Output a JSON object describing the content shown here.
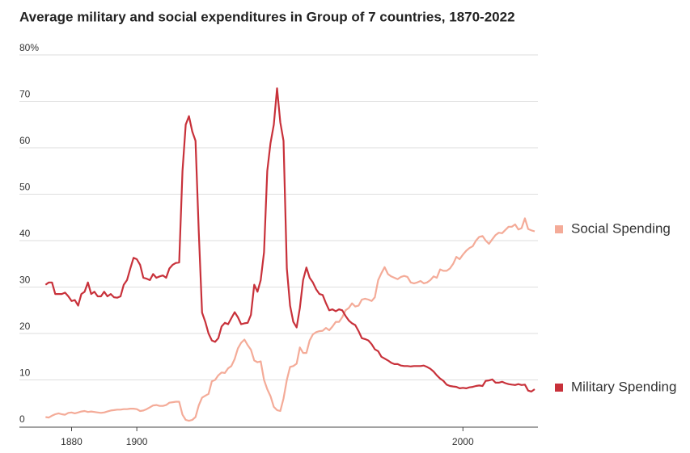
{
  "chart_data": {
    "type": "line",
    "title": "Average military and social expenditures in Group of 7 countries, 1870-2022",
    "x": [
      1872,
      1873,
      1874,
      1875,
      1876,
      1877,
      1878,
      1879,
      1880,
      1881,
      1882,
      1883,
      1884,
      1885,
      1886,
      1887,
      1888,
      1889,
      1890,
      1891,
      1892,
      1893,
      1894,
      1895,
      1896,
      1897,
      1898,
      1899,
      1900,
      1901,
      1902,
      1903,
      1904,
      1905,
      1906,
      1907,
      1908,
      1909,
      1910,
      1911,
      1912,
      1913,
      1914,
      1915,
      1916,
      1917,
      1918,
      1919,
      1920,
      1921,
      1922,
      1923,
      1924,
      1925,
      1926,
      1927,
      1928,
      1929,
      1930,
      1931,
      1932,
      1933,
      1934,
      1935,
      1936,
      1937,
      1938,
      1939,
      1940,
      1941,
      1942,
      1943,
      1944,
      1945,
      1946,
      1947,
      1948,
      1949,
      1950,
      1951,
      1952,
      1953,
      1954,
      1955,
      1956,
      1957,
      1958,
      1959,
      1960,
      1961,
      1962,
      1963,
      1964,
      1965,
      1966,
      1967,
      1968,
      1969,
      1970,
      1971,
      1972,
      1973,
      1974,
      1975,
      1976,
      1977,
      1978,
      1979,
      1980,
      1981,
      1982,
      1983,
      1984,
      1985,
      1986,
      1987,
      1988,
      1989,
      1990,
      1991,
      1992,
      1993,
      1994,
      1995,
      1996,
      1997,
      1998,
      1999,
      2000,
      2001,
      2002,
      2003,
      2004,
      2005,
      2006,
      2007,
      2008,
      2009,
      2010,
      2011,
      2012,
      2013,
      2014,
      2015,
      2016,
      2017,
      2018,
      2019,
      2020,
      2021,
      2022
    ],
    "series": [
      {
        "name": "Social Spending",
        "color": "#f4ab98",
        "values": [
          2,
          1.9,
          2.3,
          2.6,
          2.8,
          2.6,
          2.5,
          2.9,
          3,
          2.8,
          3,
          3.2,
          3.3,
          3.1,
          3.2,
          3.1,
          3,
          2.9,
          3,
          3.2,
          3.4,
          3.5,
          3.6,
          3.6,
          3.7,
          3.7,
          3.8,
          3.8,
          3.7,
          3.3,
          3.4,
          3.7,
          4.1,
          4.5,
          4.6,
          4.4,
          4.4,
          4.6,
          5.1,
          5.2,
          5.3,
          5.3,
          2.5,
          1.4,
          1.2,
          1.4,
          2,
          4.5,
          6.2,
          6.6,
          7,
          9.7,
          10,
          11,
          11.6,
          11.5,
          12.5,
          13,
          14.5,
          16.8,
          18,
          18.7,
          17.5,
          16.5,
          14.2,
          13.8,
          14,
          10,
          8,
          6.5,
          4.2,
          3.5,
          3.3,
          6,
          10,
          12.8,
          13,
          13.5,
          17,
          15.8,
          15.8,
          18.5,
          19.8,
          20.3,
          20.5,
          20.6,
          21.2,
          20.7,
          21.5,
          22.5,
          22.5,
          23.5,
          25,
          25.5,
          26.5,
          25.8,
          26,
          27.3,
          27.5,
          27.3,
          27,
          27.8,
          31.5,
          33,
          34.3,
          32.8,
          32.3,
          32,
          31.7,
          32.2,
          32.4,
          32.2,
          31,
          30.8,
          31,
          31.3,
          30.8,
          31,
          31.5,
          32.3,
          32,
          33.8,
          33.5,
          33.5,
          34,
          35,
          36.5,
          36,
          37,
          37.8,
          38.4,
          38.8,
          40,
          40.8,
          41,
          40,
          39.3,
          40.3,
          41.2,
          41.7,
          41.6,
          42.3,
          43,
          43,
          43.5,
          42.4,
          42.7,
          44.8,
          42.5,
          42.2,
          42
        ]
      },
      {
        "name": "Military Spending",
        "color": "#c8313a",
        "values": [
          30.5,
          31,
          31,
          28.5,
          28.5,
          28.5,
          28.8,
          28,
          27,
          27.2,
          26,
          28.5,
          29,
          31,
          28.5,
          29,
          28,
          28,
          29,
          28,
          28.5,
          27.8,
          27.7,
          28,
          30.5,
          31.5,
          34,
          36.3,
          36,
          34.8,
          32,
          31.8,
          31.5,
          32.8,
          32,
          32.3,
          32.5,
          32,
          34,
          34.8,
          35.2,
          35.3,
          55,
          65,
          66.8,
          63.5,
          61.5,
          42,
          24.5,
          22.5,
          20,
          18.5,
          18.2,
          19,
          21.5,
          22.3,
          22,
          23.3,
          24.6,
          23.5,
          22,
          22.2,
          22.3,
          24,
          30.5,
          29,
          31.5,
          37.5,
          55,
          61,
          65,
          72.8,
          65.5,
          61.5,
          34,
          26,
          22.5,
          21.3,
          25.5,
          31.5,
          34.2,
          32,
          31,
          29.5,
          28.5,
          28.3,
          26.5,
          25,
          25.2,
          24.8,
          25.2,
          25,
          23.8,
          22.8,
          22.2,
          21.8,
          20.5,
          19,
          18.8,
          18.5,
          17.7,
          16.6,
          16.2,
          15,
          14.6,
          14.2,
          13.7,
          13.4,
          13.4,
          13.1,
          13,
          13,
          12.9,
          13,
          13,
          13,
          13.1,
          12.8,
          12.4,
          11.8,
          11,
          10.3,
          9.8,
          9,
          8.7,
          8.6,
          8.5,
          8.2,
          8.3,
          8.2,
          8.4,
          8.5,
          8.7,
          8.8,
          8.7,
          9.8,
          9.9,
          10.1,
          9.4,
          9.4,
          9.6,
          9.3,
          9.1,
          9,
          8.9,
          9.1,
          8.9,
          9,
          7.7,
          7.5,
          8
        ]
      }
    ],
    "xlim": [
      1864,
      2023
    ],
    "xticks": [
      1880,
      1900,
      2000
    ],
    "ylim": [
      0,
      80
    ],
    "yticks": [
      0,
      10,
      20,
      30,
      40,
      50,
      60,
      70,
      {
        "value": 80,
        "label": "80%"
      }
    ],
    "grid": true
  }
}
